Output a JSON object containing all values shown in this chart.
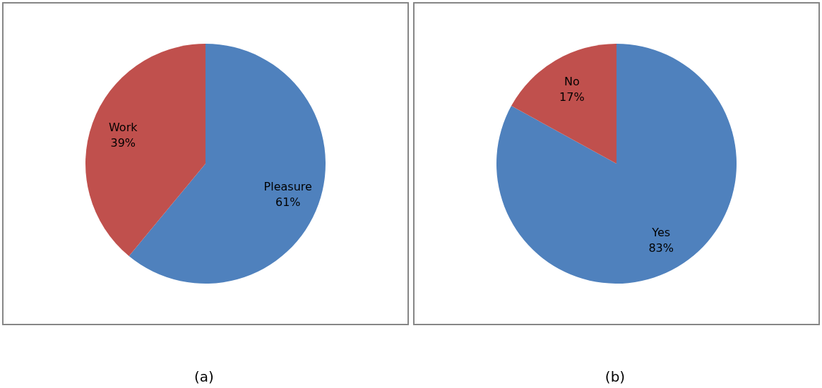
{
  "chart_data": [
    {
      "type": "pie",
      "categories": [
        "Pleasure",
        "Work"
      ],
      "values": [
        61,
        39
      ],
      "colors": [
        "#4f81bd",
        "#c0504d"
      ],
      "value_labels": [
        "61%",
        "39%"
      ],
      "annotations": [
        "(a)"
      ]
    },
    {
      "type": "pie",
      "categories": [
        "Yes",
        "No"
      ],
      "values": [
        83,
        17
      ],
      "colors": [
        "#4f81bd",
        "#c0504d"
      ],
      "value_labels": [
        "83%",
        "17%"
      ],
      "annotations": [
        "(b)"
      ]
    }
  ]
}
